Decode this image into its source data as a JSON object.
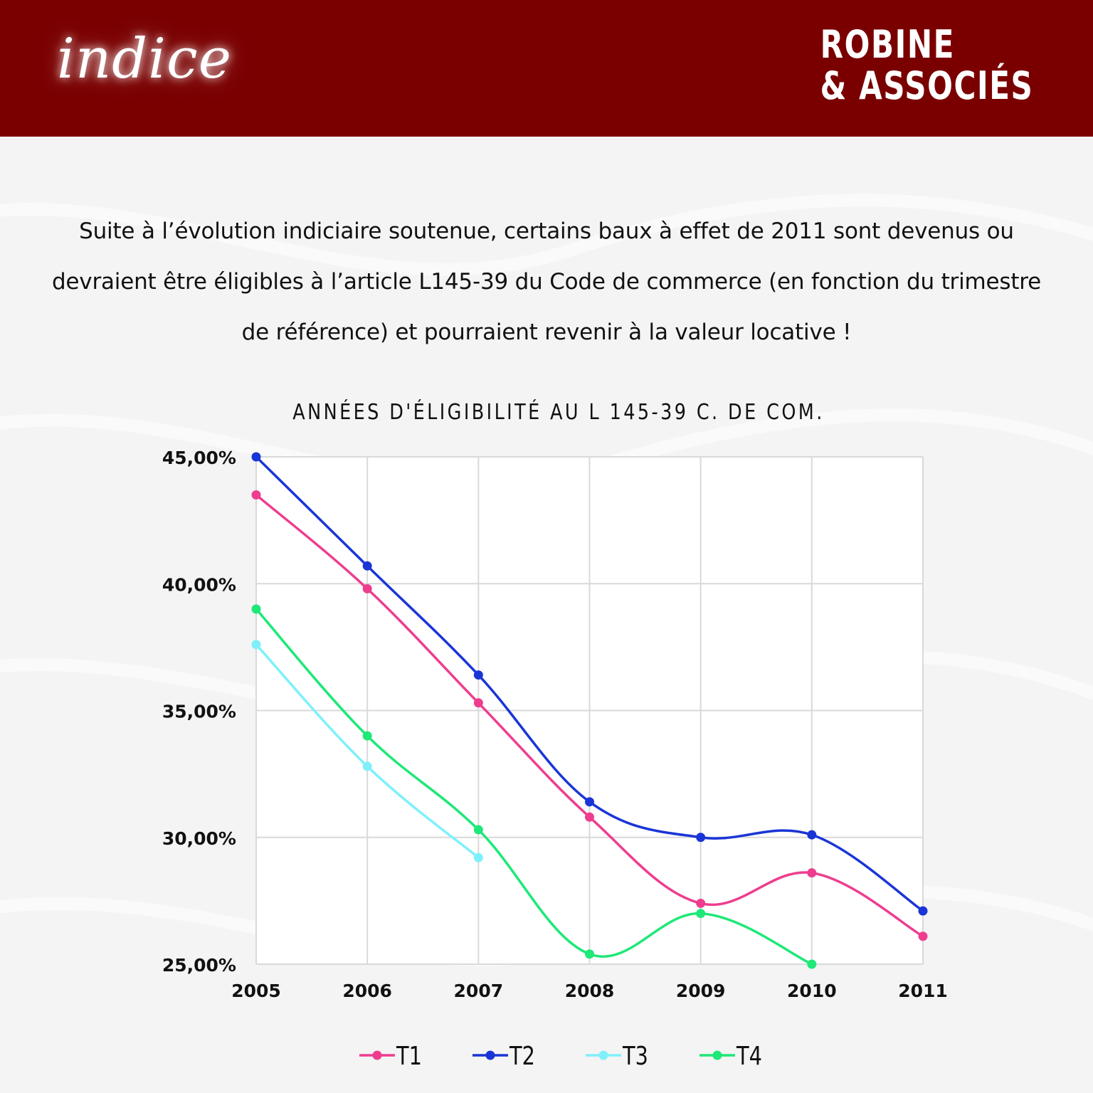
{
  "header": {
    "logo_text": "indice",
    "brand_line1": "ROBINE",
    "brand_line2": "& ASSOCIÉS"
  },
  "intro": {
    "text": "Suite à l’évolution indiciaire soutenue, certains baux à effet de 2011 sont devenus ou devraient être éligibles à l’article L145-39 du Code de commerce (en fonction du trimestre de référence) et pourraient revenir à la valeur locative  !"
  },
  "colors": {
    "header_bg": "#7a0000",
    "T1": "#ee3d8f",
    "T2": "#1a35d6",
    "T3": "#7ff0fb",
    "T4": "#1ee878"
  },
  "chart_data": {
    "type": "line",
    "title": "ANNÉES D'ÉLIGIBILITÉ AU L 145-39 C. DE COM.",
    "categories": [
      "2005",
      "2006",
      "2007",
      "2008",
      "2009",
      "2010",
      "2011"
    ],
    "ylim": [
      25,
      45
    ],
    "yticks": [
      "25,00%",
      "30,00%",
      "35,00%",
      "40,00%",
      "45,00%"
    ],
    "ytick_values": [
      25,
      30,
      35,
      40,
      45
    ],
    "grid": true,
    "smooth": true,
    "legend_position": "bottom",
    "series": [
      {
        "name": "T1",
        "color": "#ee3d8f",
        "values": [
          43.5,
          39.8,
          35.3,
          30.8,
          27.4,
          28.6,
          26.1
        ]
      },
      {
        "name": "T2",
        "color": "#1a35d6",
        "values": [
          45.0,
          40.7,
          36.4,
          31.4,
          30.0,
          30.1,
          27.1
        ]
      },
      {
        "name": "T3",
        "color": "#7ff0fb",
        "values": [
          37.6,
          32.8,
          29.2,
          null,
          null,
          null,
          null
        ]
      },
      {
        "name": "T4",
        "color": "#1ee878",
        "values": [
          39.0,
          34.0,
          30.3,
          25.4,
          27.0,
          25.0,
          null
        ]
      }
    ]
  }
}
